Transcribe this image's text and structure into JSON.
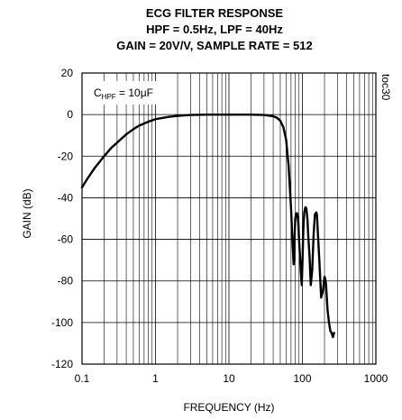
{
  "chart_data": {
    "type": "line",
    "title": [
      "ECG FILTER RESPONSE",
      "HPF = 0.5Hz, LPF = 40Hz",
      "GAIN = 20V/V, SAMPLE RATE = 512"
    ],
    "xlabel": "FREQUENCY (Hz)",
    "ylabel": "GAIN (dB)",
    "xscale": "log",
    "xlim": [
      0.1,
      1000
    ],
    "ylim": [
      -120,
      20
    ],
    "x_ticks": [
      "0.1",
      "1",
      "10",
      "100",
      "1000"
    ],
    "y_ticks": [
      "20",
      "0",
      "-20",
      "-40",
      "-60",
      "-80",
      "-100",
      "-120"
    ],
    "grid": true,
    "annotation": {
      "main": "C",
      "sub": "HPF",
      "rest": " = 10μF"
    },
    "figure_id": "toc30",
    "series": [
      {
        "x": [
          0.1,
          0.12,
          0.15,
          0.2,
          0.25,
          0.3,
          0.4,
          0.5,
          0.6,
          0.8,
          1.0,
          1.5,
          2,
          3,
          5,
          10,
          20,
          30,
          40,
          45,
          50,
          55,
          60,
          65,
          70,
          73,
          75,
          76,
          77,
          78,
          80,
          82,
          85,
          88,
          90,
          95,
          98,
          100,
          103,
          106,
          110,
          113,
          117,
          120,
          125,
          130,
          136,
          142,
          148,
          155,
          158,
          163,
          170,
          180,
          190,
          200,
          205,
          210,
          215,
          220,
          230,
          240,
          250,
          260,
          270
        ],
        "y": [
          -35,
          -30.5,
          -25.5,
          -20,
          -16,
          -13.5,
          -9.5,
          -7,
          -5.3,
          -3.4,
          -2.2,
          -1.1,
          -0.6,
          -0.2,
          0,
          0,
          0,
          -0.2,
          -0.8,
          -1.5,
          -3,
          -6,
          -12,
          -25,
          -45,
          -60,
          -68,
          -72,
          -70,
          -60,
          -50,
          -47.5,
          -47.5,
          -52,
          -60,
          -75,
          -82,
          -72,
          -55,
          -47,
          -44.5,
          -45,
          -50,
          -58,
          -68,
          -82,
          -75,
          -58,
          -48,
          -47,
          -48.5,
          -58,
          -70,
          -88,
          -85,
          -78,
          -79,
          -82,
          -88,
          -94,
          -100,
          -104,
          -105,
          -107,
          -105
        ]
      }
    ]
  }
}
